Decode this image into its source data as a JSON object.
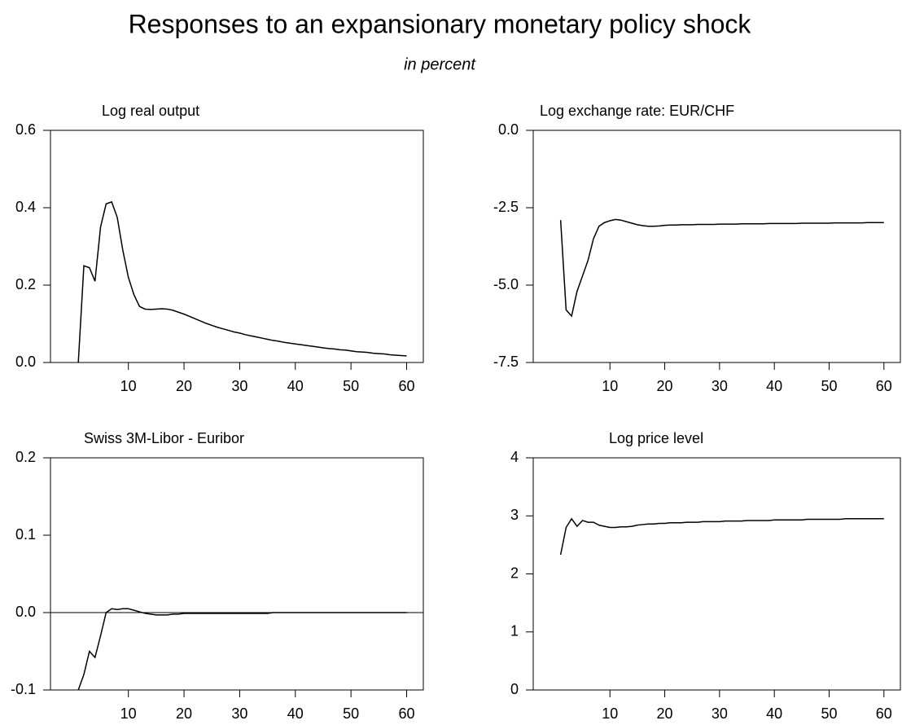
{
  "title": "Responses to an expansionary monetary policy shock",
  "subtitle": "in percent",
  "chart_data": [
    {
      "type": "line",
      "title": "Log real output",
      "color": "#000000",
      "x": [
        1,
        2,
        3,
        4,
        5,
        6,
        7,
        8,
        9,
        10,
        11,
        12,
        13,
        14,
        15,
        16,
        17,
        18,
        19,
        20,
        21,
        22,
        23,
        24,
        25,
        26,
        27,
        28,
        29,
        30,
        31,
        32,
        33,
        34,
        35,
        36,
        37,
        38,
        39,
        40,
        41,
        42,
        43,
        44,
        45,
        46,
        47,
        48,
        49,
        50,
        51,
        52,
        53,
        54,
        55,
        56,
        57,
        58,
        59,
        60
      ],
      "values": [
        0,
        0.25,
        0.245,
        0.21,
        0.35,
        0.41,
        0.415,
        0.375,
        0.29,
        0.22,
        0.175,
        0.145,
        0.138,
        0.137,
        0.138,
        0.139,
        0.138,
        0.135,
        0.13,
        0.125,
        0.119,
        0.113,
        0.107,
        0.101,
        0.096,
        0.091,
        0.087,
        0.083,
        0.079,
        0.076,
        0.072,
        0.069,
        0.066,
        0.063,
        0.06,
        0.057,
        0.055,
        0.052,
        0.05,
        0.048,
        0.046,
        0.044,
        0.042,
        0.04,
        0.038,
        0.036,
        0.035,
        0.033,
        0.032,
        0.03,
        0.028,
        0.027,
        0.026,
        0.024,
        0.023,
        0.022,
        0.02,
        0.019,
        0.018,
        0.017
      ],
      "xlim": [
        -4,
        63
      ],
      "xticks": [
        10,
        20,
        30,
        40,
        50,
        60
      ],
      "ylim": [
        0,
        0.6
      ],
      "yticks": [
        {
          "value": 0,
          "label": "0.0"
        },
        0.2,
        0.4,
        0.6
      ]
    },
    {
      "type": "line",
      "title": "Log exchange rate: EUR/CHF",
      "color": "#000000",
      "x": [
        1,
        2,
        3,
        4,
        5,
        6,
        7,
        8,
        9,
        10,
        11,
        12,
        13,
        14,
        15,
        16,
        17,
        18,
        19,
        20,
        21,
        22,
        23,
        24,
        25,
        26,
        27,
        28,
        29,
        30,
        31,
        32,
        33,
        34,
        35,
        36,
        37,
        38,
        39,
        40,
        41,
        42,
        43,
        44,
        45,
        46,
        47,
        48,
        49,
        50,
        51,
        52,
        53,
        54,
        55,
        56,
        57,
        58,
        59,
        60
      ],
      "values": [
        -2.9,
        -5.8,
        -6.0,
        -5.2,
        -4.7,
        -4.2,
        -3.5,
        -3.1,
        -2.98,
        -2.92,
        -2.88,
        -2.9,
        -2.95,
        -3.0,
        -3.05,
        -3.08,
        -3.1,
        -3.1,
        -3.09,
        -3.07,
        -3.06,
        -3.06,
        -3.05,
        -3.05,
        -3.05,
        -3.04,
        -3.04,
        -3.04,
        -3.04,
        -3.03,
        -3.03,
        -3.03,
        -3.03,
        -3.02,
        -3.02,
        -3.02,
        -3.02,
        -3.02,
        -3.01,
        -3.01,
        -3.01,
        -3.01,
        -3.01,
        -3.01,
        -3.0,
        -3.0,
        -3.0,
        -3.0,
        -3.0,
        -3.0,
        -2.99,
        -2.99,
        -2.99,
        -2.99,
        -2.99,
        -2.99,
        -2.98,
        -2.98,
        -2.98,
        -2.98
      ],
      "xlim": [
        -4,
        63
      ],
      "xticks": [
        10,
        20,
        30,
        40,
        50,
        60
      ],
      "ylim": [
        -7.5,
        0
      ],
      "yticks": [
        -7.5,
        {
          "value": -5,
          "label": "-5.0"
        },
        -2.5,
        {
          "value": 0,
          "label": "0.0"
        }
      ]
    },
    {
      "type": "line",
      "title": "Swiss 3M-Libor - Euribor",
      "color": "#000000",
      "x": [
        1,
        2,
        3,
        4,
        5,
        6,
        7,
        8,
        9,
        10,
        11,
        12,
        13,
        14,
        15,
        16,
        17,
        18,
        19,
        20,
        21,
        22,
        23,
        24,
        25,
        26,
        27,
        28,
        29,
        30,
        31,
        32,
        33,
        34,
        35,
        36,
        37,
        38,
        39,
        40,
        41,
        42,
        43,
        44,
        45,
        46,
        47,
        48,
        49,
        50,
        51,
        52,
        53,
        54,
        55,
        56,
        57,
        58,
        59,
        60
      ],
      "values": [
        -0.1,
        -0.08,
        -0.05,
        -0.058,
        -0.03,
        0,
        0.005,
        0.004,
        0.005,
        0.005,
        0.003,
        0.001,
        -0.001,
        -0.002,
        -0.003,
        -0.003,
        -0.003,
        -0.002,
        -0.002,
        -0.001,
        -0.001,
        -0.001,
        -0.001,
        -0.001,
        -0.001,
        -0.001,
        -0.001,
        -0.001,
        -0.001,
        -0.001,
        -0.001,
        -0.001,
        -0.001,
        -0.001,
        -0.001,
        0,
        0,
        0,
        0,
        0,
        0,
        0,
        0,
        0,
        0,
        0,
        0,
        0,
        0,
        0,
        0,
        0,
        0,
        0,
        0,
        0,
        0,
        0,
        0,
        0
      ],
      "xlim": [
        -4,
        63
      ],
      "xticks": [
        10,
        20,
        30,
        40,
        50,
        60
      ],
      "ylim": [
        -0.1,
        0.2
      ],
      "yticks": [
        -0.1,
        {
          "value": 0,
          "label": "0.0"
        },
        0.1,
        0.2
      ]
    },
    {
      "type": "line",
      "title": "Log price level",
      "color": "#000000",
      "x": [
        1,
        2,
        3,
        4,
        5,
        6,
        7,
        8,
        9,
        10,
        11,
        12,
        13,
        14,
        15,
        16,
        17,
        18,
        19,
        20,
        21,
        22,
        23,
        24,
        25,
        26,
        27,
        28,
        29,
        30,
        31,
        32,
        33,
        34,
        35,
        36,
        37,
        38,
        39,
        40,
        41,
        42,
        43,
        44,
        45,
        46,
        47,
        48,
        49,
        50,
        51,
        52,
        53,
        54,
        55,
        56,
        57,
        58,
        59,
        60
      ],
      "values": [
        2.33,
        2.8,
        2.95,
        2.82,
        2.92,
        2.89,
        2.89,
        2.84,
        2.82,
        2.8,
        2.8,
        2.81,
        2.81,
        2.82,
        2.84,
        2.85,
        2.86,
        2.86,
        2.87,
        2.87,
        2.88,
        2.88,
        2.88,
        2.89,
        2.89,
        2.89,
        2.9,
        2.9,
        2.9,
        2.9,
        2.91,
        2.91,
        2.91,
        2.91,
        2.92,
        2.92,
        2.92,
        2.92,
        2.92,
        2.93,
        2.93,
        2.93,
        2.93,
        2.93,
        2.93,
        2.94,
        2.94,
        2.94,
        2.94,
        2.94,
        2.94,
        2.94,
        2.95,
        2.95,
        2.95,
        2.95,
        2.95,
        2.95,
        2.95,
        2.95
      ],
      "xlim": [
        -4,
        63
      ],
      "xticks": [
        10,
        20,
        30,
        40,
        50,
        60
      ],
      "ylim": [
        0,
        4
      ],
      "yticks": [
        0,
        1,
        2,
        3,
        4
      ]
    }
  ]
}
